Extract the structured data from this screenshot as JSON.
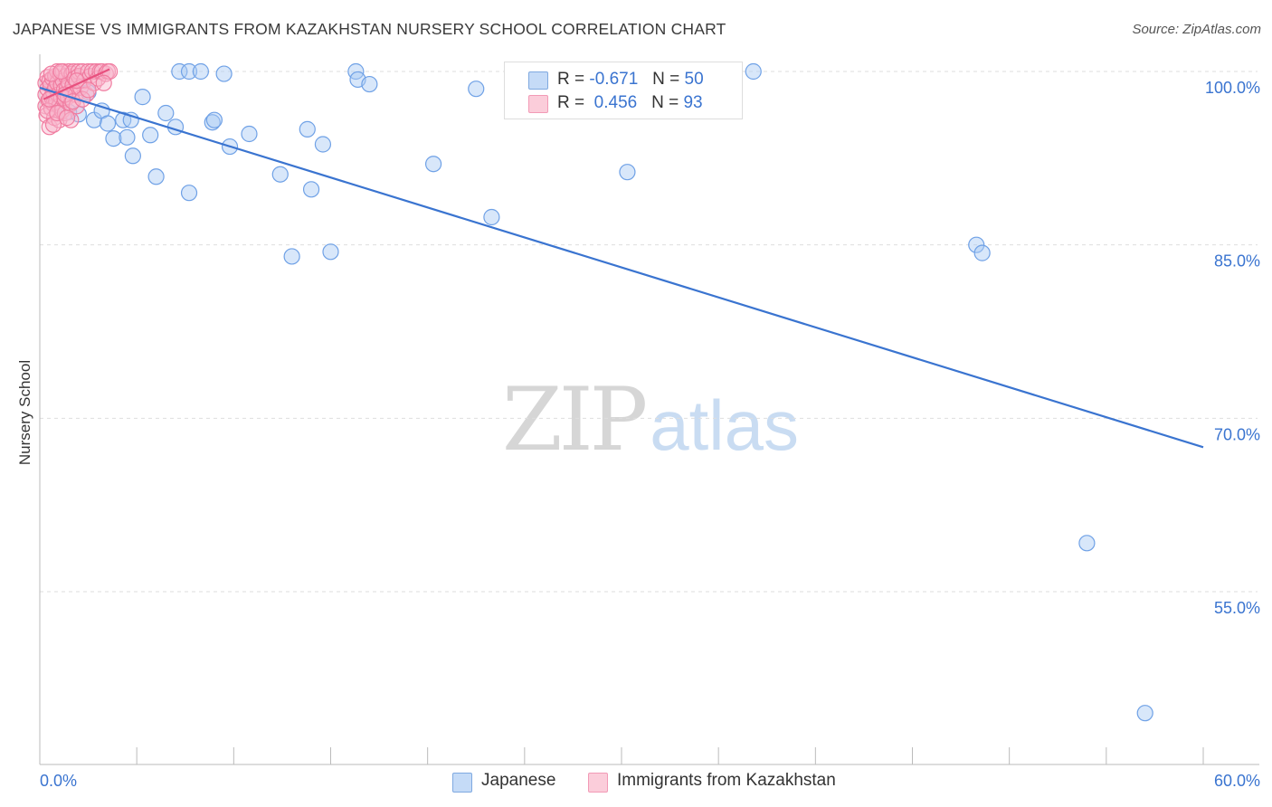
{
  "title": "JAPANESE VS IMMIGRANTS FROM KAZAKHSTAN NURSERY SCHOOL CORRELATION CHART",
  "source": "Source: ZipAtlas.com",
  "watermark": {
    "zip": "ZIP",
    "atlas": "atlas"
  },
  "legend": {
    "rows": [
      {
        "r_label": "R =",
        "r_value": "-0.671",
        "n_label": "N =",
        "n_value": "50",
        "color": "#a9c9f3"
      },
      {
        "r_label": "R =",
        "r_value": " 0.456",
        "n_label": "N =",
        "n_value": "93",
        "color": "#f9b6cb"
      }
    ]
  },
  "bottom_legend": [
    {
      "label": "Japanese",
      "color": "#a9c9f3"
    },
    {
      "label": "Immigrants from Kazakhstan",
      "color": "#f9b6cb"
    }
  ],
  "chart_data": {
    "type": "scatter",
    "title": "JAPANESE VS IMMIGRANTS FROM KAZAKHSTAN NURSERY SCHOOL CORRELATION CHART",
    "xlabel": "",
    "ylabel": "Nursery School",
    "xlim": [
      0,
      60
    ],
    "ylim": [
      42,
      101
    ],
    "x_tick_labels": [
      "0.0%",
      "60.0%"
    ],
    "y_ticks": [
      100,
      85,
      70,
      55
    ],
    "y_tick_labels": [
      "100.0%",
      "85.0%",
      "70.0%",
      "55.0%"
    ],
    "grid": true,
    "series": [
      {
        "name": "Japanese",
        "color": "#6fa1e6",
        "fill": "#a9c9f3",
        "trend": {
          "x": [
            0,
            60
          ],
          "y": [
            98.6,
            67.5
          ],
          "color": "#3a74d0"
        },
        "points": [
          [
            1.0,
            97.0
          ],
          [
            1.5,
            96.5
          ],
          [
            2.0,
            96.3
          ],
          [
            2.5,
            98.2
          ],
          [
            2.8,
            95.8
          ],
          [
            3.2,
            96.6
          ],
          [
            3.5,
            95.5
          ],
          [
            3.8,
            94.2
          ],
          [
            4.3,
            95.8
          ],
          [
            4.5,
            94.3
          ],
          [
            4.7,
            95.8
          ],
          [
            4.8,
            92.7
          ],
          [
            5.3,
            97.8
          ],
          [
            5.7,
            94.5
          ],
          [
            6.0,
            90.9
          ],
          [
            6.5,
            96.4
          ],
          [
            7.0,
            95.2
          ],
          [
            7.2,
            100.0
          ],
          [
            7.7,
            100.0
          ],
          [
            7.7,
            89.5
          ],
          [
            8.3,
            100.0
          ],
          [
            8.9,
            95.6
          ],
          [
            9.0,
            95.8
          ],
          [
            9.5,
            99.8
          ],
          [
            9.8,
            93.5
          ],
          [
            10.8,
            94.6
          ],
          [
            12.4,
            91.1
          ],
          [
            13.0,
            84.0
          ],
          [
            13.8,
            95.0
          ],
          [
            14.0,
            89.8
          ],
          [
            14.6,
            93.7
          ],
          [
            15.0,
            84.4
          ],
          [
            16.3,
            100.0
          ],
          [
            16.4,
            99.3
          ],
          [
            17.0,
            98.9
          ],
          [
            20.3,
            92.0
          ],
          [
            22.5,
            98.5
          ],
          [
            23.3,
            87.4
          ],
          [
            30.3,
            91.3
          ],
          [
            36.8,
            100.0
          ],
          [
            48.3,
            85.0
          ],
          [
            48.6,
            84.3
          ],
          [
            54.0,
            59.2
          ],
          [
            57.0,
            44.5
          ]
        ]
      },
      {
        "name": "Immigrants from Kazakhstan",
        "color": "#f07ca0",
        "fill": "#f9b6cb",
        "trend": {
          "x": [
            0.2,
            3.6
          ],
          "y": [
            97.6,
            100.2
          ],
          "color": "#e8507e"
        },
        "points": [
          [
            0.3,
            99.0
          ],
          [
            0.3,
            98.0
          ],
          [
            0.3,
            97.0
          ],
          [
            0.35,
            96.2
          ],
          [
            0.4,
            99.5
          ],
          [
            0.4,
            98.5
          ],
          [
            0.45,
            97.5
          ],
          [
            0.5,
            95.2
          ],
          [
            0.5,
            99.2
          ],
          [
            0.55,
            98.8
          ],
          [
            0.6,
            97.8
          ],
          [
            0.6,
            96.8
          ],
          [
            0.65,
            99.4
          ],
          [
            0.7,
            98.2
          ],
          [
            0.7,
            97.2
          ],
          [
            0.75,
            96.0
          ],
          [
            0.8,
            99.6
          ],
          [
            0.8,
            98.6
          ],
          [
            0.85,
            97.4
          ],
          [
            0.9,
            100.0
          ],
          [
            0.9,
            99.0
          ],
          [
            0.95,
            98.0
          ],
          [
            1.0,
            97.0
          ],
          [
            1.0,
            95.8
          ],
          [
            1.05,
            99.8
          ],
          [
            1.1,
            98.8
          ],
          [
            1.1,
            97.8
          ],
          [
            1.15,
            96.6
          ],
          [
            1.2,
            100.0
          ],
          [
            1.2,
            99.2
          ],
          [
            1.25,
            98.4
          ],
          [
            1.3,
            97.6
          ],
          [
            1.3,
            96.4
          ],
          [
            1.35,
            99.6
          ],
          [
            1.4,
            98.6
          ],
          [
            1.45,
            97.8
          ],
          [
            1.5,
            100.0
          ],
          [
            1.5,
            99.0
          ],
          [
            1.55,
            98.2
          ],
          [
            1.6,
            97.2
          ],
          [
            1.6,
            95.8
          ],
          [
            1.65,
            99.8
          ],
          [
            1.7,
            98.8
          ],
          [
            1.75,
            100.0
          ],
          [
            1.8,
            99.4
          ],
          [
            1.85,
            98.0
          ],
          [
            1.9,
            97.0
          ],
          [
            2.0,
            100.0
          ],
          [
            2.0,
            99.6
          ],
          [
            2.1,
            98.6
          ],
          [
            2.2,
            100.0
          ],
          [
            2.3,
            99.2
          ],
          [
            2.4,
            98.0
          ],
          [
            2.5,
            100.0
          ],
          [
            2.6,
            99.6
          ],
          [
            2.7,
            100.0
          ],
          [
            2.8,
            99.0
          ],
          [
            2.9,
            100.0
          ],
          [
            3.0,
            99.4
          ],
          [
            3.1,
            100.0
          ],
          [
            3.2,
            100.0
          ],
          [
            3.4,
            99.8
          ],
          [
            3.5,
            100.0
          ],
          [
            3.6,
            100.0
          ],
          [
            0.4,
            96.6
          ],
          [
            0.5,
            97.6
          ],
          [
            0.6,
            99.8
          ],
          [
            0.7,
            95.4
          ],
          [
            0.9,
            96.4
          ],
          [
            1.1,
            100.0
          ],
          [
            1.3,
            98.0
          ],
          [
            1.4,
            96.0
          ],
          [
            1.7,
            97.4
          ],
          [
            1.9,
            99.2
          ],
          [
            2.2,
            97.6
          ],
          [
            2.5,
            98.4
          ],
          [
            3.3,
            99.0
          ]
        ]
      }
    ]
  }
}
